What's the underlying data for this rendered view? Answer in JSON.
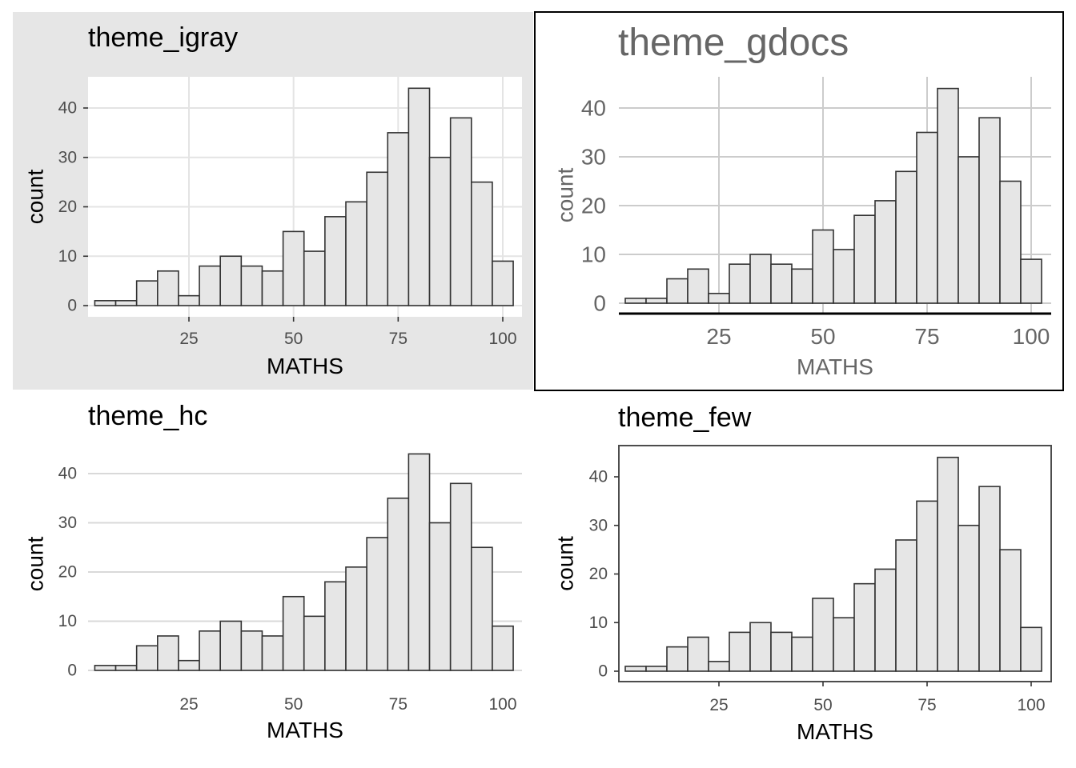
{
  "chart_data": [
    {
      "type": "bar",
      "title": "theme_igray",
      "xlabel": "MATHS",
      "ylabel": "count",
      "x": [
        5,
        10,
        15,
        20,
        25,
        30,
        35,
        40,
        45,
        50,
        55,
        60,
        65,
        70,
        75,
        80,
        85,
        90,
        95,
        100
      ],
      "values": [
        1,
        1,
        5,
        7,
        2,
        8,
        10,
        8,
        7,
        15,
        11,
        18,
        21,
        27,
        35,
        44,
        30,
        38,
        25,
        9
      ],
      "xticks": [
        "25",
        "50",
        "75",
        "100"
      ],
      "yticks": [
        "0",
        "10",
        "20",
        "30",
        "40"
      ],
      "grid": true
    },
    {
      "type": "bar",
      "title": "theme_gdocs",
      "xlabel": "MATHS",
      "ylabel": "count",
      "x": [
        5,
        10,
        15,
        20,
        25,
        30,
        35,
        40,
        45,
        50,
        55,
        60,
        65,
        70,
        75,
        80,
        85,
        90,
        95,
        100
      ],
      "values": [
        1,
        1,
        5,
        7,
        2,
        8,
        10,
        8,
        7,
        15,
        11,
        18,
        21,
        27,
        35,
        44,
        30,
        38,
        25,
        9
      ],
      "xticks": [
        "25",
        "50",
        "75",
        "100"
      ],
      "yticks": [
        "0",
        "10",
        "20",
        "30",
        "40"
      ],
      "grid": true
    },
    {
      "type": "bar",
      "title": "theme_hc",
      "xlabel": "MATHS",
      "ylabel": "count",
      "x": [
        5,
        10,
        15,
        20,
        25,
        30,
        35,
        40,
        45,
        50,
        55,
        60,
        65,
        70,
        75,
        80,
        85,
        90,
        95,
        100
      ],
      "values": [
        1,
        1,
        5,
        7,
        2,
        8,
        10,
        8,
        7,
        15,
        11,
        18,
        21,
        27,
        35,
        44,
        30,
        38,
        25,
        9
      ],
      "xticks": [
        "25",
        "50",
        "75",
        "100"
      ],
      "yticks": [
        "0",
        "10",
        "20",
        "30",
        "40"
      ],
      "grid": true
    },
    {
      "type": "bar",
      "title": "theme_few",
      "xlabel": "MATHS",
      "ylabel": "count",
      "x": [
        5,
        10,
        15,
        20,
        25,
        30,
        35,
        40,
        45,
        50,
        55,
        60,
        65,
        70,
        75,
        80,
        85,
        90,
        95,
        100
      ],
      "values": [
        1,
        1,
        5,
        7,
        2,
        8,
        10,
        8,
        7,
        15,
        11,
        18,
        21,
        27,
        35,
        44,
        30,
        38,
        25,
        9
      ],
      "xticks": [
        "25",
        "50",
        "75",
        "100"
      ],
      "yticks": [
        "0",
        "10",
        "20",
        "30",
        "40"
      ],
      "grid": false
    }
  ],
  "colors": {
    "bar_fill": "#e6e6e6",
    "bar_stroke": "#333333",
    "igray_background": "#e6e6e6",
    "gdocs_text": "#666666"
  }
}
